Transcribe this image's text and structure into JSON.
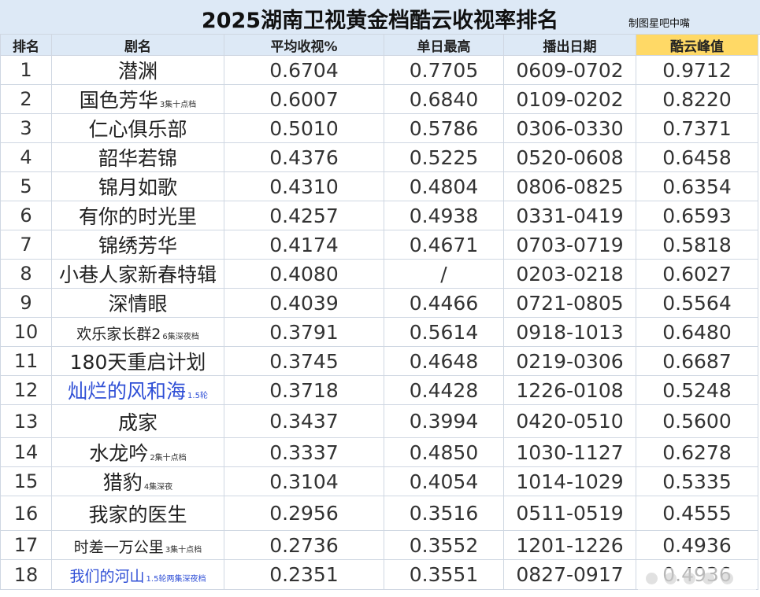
{
  "title": "2025湖南卫视黄金档酷云收视率排名",
  "credit": "制图星吧中嘴",
  "headers": [
    "排名",
    "剧名",
    "平均收视%",
    "单日最高",
    "播出日期",
    "酷云峰值"
  ],
  "highlight_color": "#ffd966",
  "header_bg": "#dde9f6",
  "blue_text_color": "#2f4fd6",
  "rows": [
    {
      "rank": "1",
      "name": "潜渊",
      "note": "",
      "avg": "0.6704",
      "peak_day": "0.7705",
      "dates": "0609-0702",
      "kuyun_peak": "0.9712"
    },
    {
      "rank": "2",
      "name": "国色芳华",
      "note": "3集十点档",
      "avg": "0.6007",
      "peak_day": "0.6840",
      "dates": "0109-0202",
      "kuyun_peak": "0.8220"
    },
    {
      "rank": "3",
      "name": "仁心俱乐部",
      "note": "",
      "avg": "0.5010",
      "peak_day": "0.5786",
      "dates": "0306-0330",
      "kuyun_peak": "0.7371"
    },
    {
      "rank": "4",
      "name": "韶华若锦",
      "note": "",
      "avg": "0.4376",
      "peak_day": "0.5225",
      "dates": "0520-0608",
      "kuyun_peak": "0.6458"
    },
    {
      "rank": "5",
      "name": "锦月如歌",
      "note": "",
      "avg": "0.4310",
      "peak_day": "0.4804",
      "dates": "0806-0825",
      "kuyun_peak": "0.6354"
    },
    {
      "rank": "6",
      "name": "有你的时光里",
      "note": "",
      "avg": "0.4257",
      "peak_day": "0.4938",
      "dates": "0331-0419",
      "kuyun_peak": "0.6593"
    },
    {
      "rank": "7",
      "name": "锦绣芳华",
      "note": "",
      "avg": "0.4174",
      "peak_day": "0.4671",
      "dates": "0703-0719",
      "kuyun_peak": "0.5818"
    },
    {
      "rank": "8",
      "name": "小巷人家新春特辑",
      "note": "",
      "avg": "0.4080",
      "peak_day": "/",
      "dates": "0203-0218",
      "kuyun_peak": "0.6027"
    },
    {
      "rank": "9",
      "name": "深情眼",
      "note": "",
      "avg": "0.4039",
      "peak_day": "0.4466",
      "dates": "0721-0805",
      "kuyun_peak": "0.5564"
    },
    {
      "rank": "10",
      "name": "欢乐家长群2",
      "note": "6集深夜档",
      "avg": "0.3791",
      "peak_day": "0.5614",
      "dates": "0918-1013",
      "kuyun_peak": "0.6480"
    },
    {
      "rank": "11",
      "name": "180天重启计划",
      "note": "",
      "avg": "0.3745",
      "peak_day": "0.4648",
      "dates": "0219-0306",
      "kuyun_peak": "0.6687"
    },
    {
      "rank": "12",
      "name": "灿烂的风和海",
      "note": "1.5轮",
      "avg": "0.3718",
      "peak_day": "0.4428",
      "dates": "1226-0108",
      "kuyun_peak": "0.5248"
    },
    {
      "rank": "13",
      "name": "成家",
      "note": "",
      "avg": "0.3437",
      "peak_day": "0.3994",
      "dates": "0420-0510",
      "kuyun_peak": "0.5600"
    },
    {
      "rank": "14",
      "name": "水龙吟",
      "note": "2集十点档",
      "avg": "0.3337",
      "peak_day": "0.4850",
      "dates": "1030-1127",
      "kuyun_peak": "0.6278"
    },
    {
      "rank": "15",
      "name": "猎豹",
      "note": "4集深夜",
      "avg": "0.3104",
      "peak_day": "0.4054",
      "dates": "1014-1029",
      "kuyun_peak": "0.5335"
    },
    {
      "rank": "16",
      "name": "我家的医生",
      "note": "",
      "avg": "0.2956",
      "peak_day": "0.3516",
      "dates": "0511-0519",
      "kuyun_peak": "0.4555"
    },
    {
      "rank": "17",
      "name": "时差一万公里",
      "note": "3集十点档",
      "avg": "0.2736",
      "peak_day": "0.3552",
      "dates": "1201-1226",
      "kuyun_peak": "0.4936"
    },
    {
      "rank": "18",
      "name": "我们的河山",
      "note": "1.5轮两集深夜档",
      "avg": "0.2351",
      "peak_day": "0.3551",
      "dates": "0827-0917",
      "kuyun_peak": "0.4936"
    }
  ]
}
